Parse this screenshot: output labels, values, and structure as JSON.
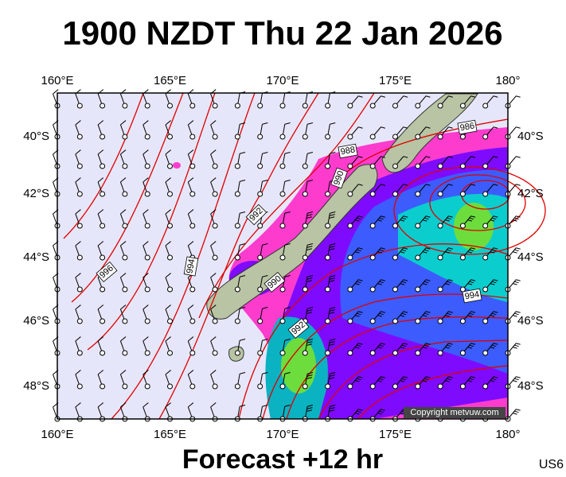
{
  "title": "1900 NZDT Thu 22 Jan 2026",
  "lon_labels": [
    "160°E",
    "165°E",
    "170°E",
    "175°E",
    "180°"
  ],
  "lat_labels": [
    "40°S",
    "42°S",
    "44°S",
    "46°S",
    "48°S"
  ],
  "isobar_labels": [
    "986",
    "988",
    "990",
    "992",
    "990",
    "992",
    "994",
    "994",
    "996"
  ],
  "footer": "Forecast +12 hr",
  "code": "US6",
  "copyright": "Copyright metvuw.com"
}
